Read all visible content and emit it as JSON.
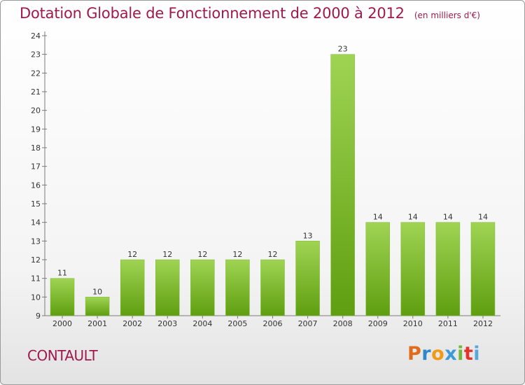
{
  "header": {
    "title": "Dotation Globale de Fonctionnement de 2000 à 2012",
    "subtitle": "(en milliers d'€)"
  },
  "commune": "CONTAULT",
  "logo": {
    "text": "Proxiti",
    "letters": [
      "P",
      "r",
      "o",
      "x",
      "i",
      "t",
      "i"
    ]
  },
  "colors": {
    "bar_top": "#9fd453",
    "bar_bottom": "#5f9e10",
    "title": "#a0194d"
  },
  "chart_data": {
    "type": "bar",
    "title": "Dotation Globale de Fonctionnement de 2000 à 2012",
    "subtitle": "(en milliers d'€)",
    "categories": [
      "2000",
      "2001",
      "2002",
      "2003",
      "2004",
      "2005",
      "2006",
      "2007",
      "2008",
      "2009",
      "2010",
      "2011",
      "2012"
    ],
    "values": [
      11,
      10,
      12,
      12,
      12,
      12,
      12,
      13,
      23,
      14,
      14,
      14,
      14
    ],
    "data_labels": [
      "11",
      "10",
      "12",
      "12",
      "12",
      "12",
      "12",
      "13",
      "23",
      "14",
      "14",
      "14",
      "14"
    ],
    "xlabel": "",
    "ylabel": "",
    "ylim": [
      9,
      24
    ],
    "yticks": [
      "9",
      "10",
      "11",
      "12",
      "13",
      "14",
      "15",
      "16",
      "17",
      "18",
      "19",
      "20",
      "21",
      "22",
      "23",
      "24"
    ],
    "grid": false,
    "legend": "none"
  }
}
